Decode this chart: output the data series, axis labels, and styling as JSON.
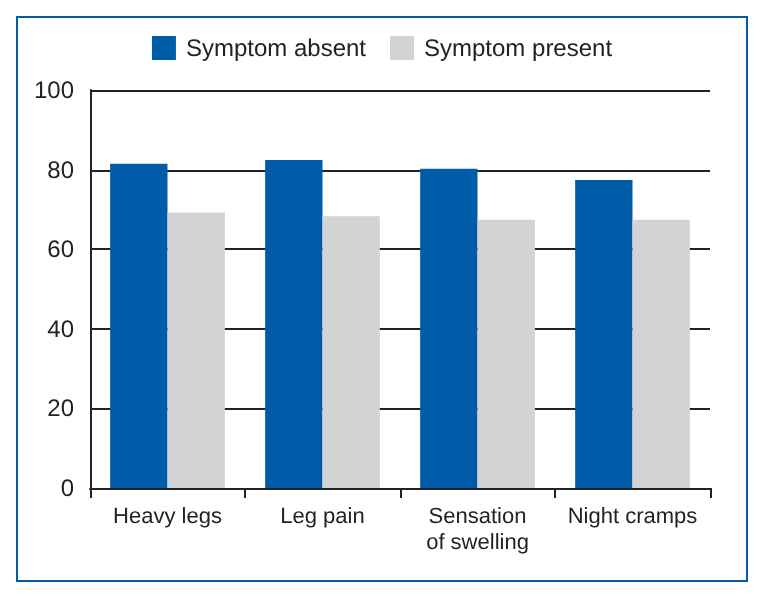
{
  "chart_data": {
    "type": "bar",
    "categories": [
      "Heavy legs",
      "Leg pain",
      "Sensation\nof swelling",
      "Night cramps"
    ],
    "series": [
      {
        "name": "Symptom absent",
        "color": "#005ca9",
        "values": [
          81.5,
          82.4,
          80.2,
          77.4
        ]
      },
      {
        "name": "Symptom present",
        "color": "#d1d3d4",
        "values": [
          69.2,
          68.3,
          67.4,
          67.4
        ]
      }
    ],
    "ylim": [
      0,
      100
    ],
    "yticks": [
      0,
      20,
      40,
      60,
      80,
      100
    ],
    "grid": "y",
    "legend": "top"
  }
}
